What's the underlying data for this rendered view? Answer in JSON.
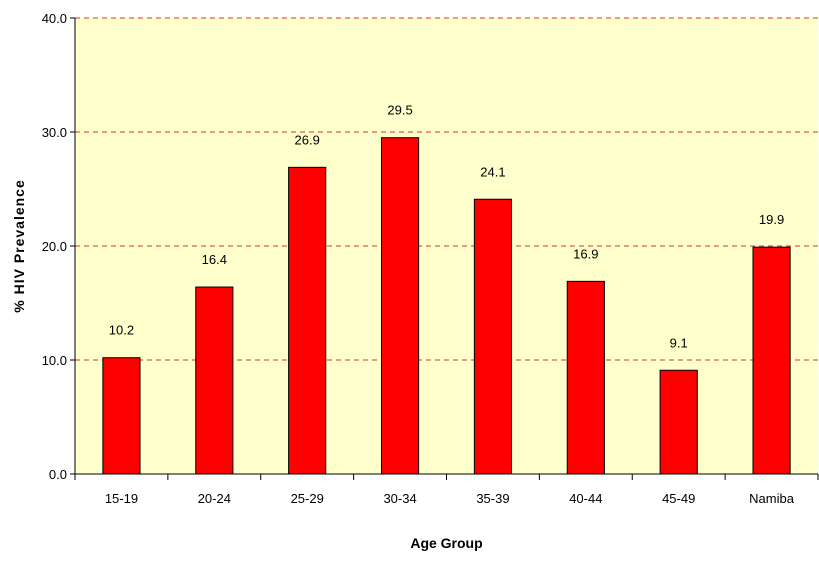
{
  "chart_data": {
    "type": "bar",
    "title": "",
    "xlabel": "Age Group",
    "ylabel": "% HIV Prevalence",
    "categories": [
      "15-19",
      "20-24",
      "25-29",
      "30-34",
      "35-39",
      "40-44",
      "45-49",
      "Namiba"
    ],
    "values": [
      10.2,
      16.4,
      26.9,
      29.5,
      24.1,
      16.9,
      9.1,
      19.9
    ],
    "value_labels": [
      "10.2",
      "16.4",
      "26.9",
      "29.5",
      "24.1",
      "16.9",
      "9.1",
      "19.9"
    ],
    "ylim": [
      0,
      40
    ],
    "yticks": [
      0,
      10,
      20,
      30,
      40
    ],
    "ytick_labels": [
      "0.0",
      "10.0",
      "20.0",
      "30.0",
      "40.0"
    ],
    "grid": "horizontal dashed",
    "legend": "none",
    "colors": {
      "bar_fill": "#ff0000",
      "bar_stroke": "#000000",
      "plot_background": "#ffffcc",
      "gridline": "#e03030"
    }
  }
}
